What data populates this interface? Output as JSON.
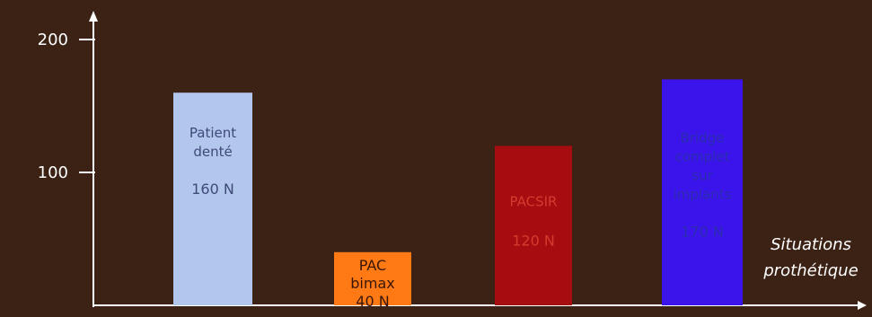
{
  "chart_data": {
    "type": "bar",
    "categories": [
      "Patient denté 160 N",
      "PAC bimax 40 N",
      "PACSIR 120 N",
      "Bridge complet sur implants 170 N"
    ],
    "values": [
      160,
      40,
      120,
      170
    ],
    "bar_labels": [
      [
        "Patient",
        "denté",
        "",
        "160 N"
      ],
      [
        "PAC",
        "bimax",
        "40 N"
      ],
      [
        "PACSIR",
        "",
        "120 N"
      ],
      [
        "Bridge",
        "complet",
        "sur",
        "implants",
        "",
        "170 N"
      ]
    ],
    "bar_colors": [
      "#b3c6ec",
      "#ff7a14",
      "#a50d10",
      "#3a14ea"
    ],
    "label_colors": [
      "#3e4a78",
      "#3a1608",
      "#d63a2e",
      "#2d2db0"
    ],
    "yticks": [
      100,
      200
    ],
    "ylim": [
      0,
      200
    ],
    "xlabel": [
      "Situations",
      "prothétique"
    ],
    "ylabel": "",
    "title": "",
    "axis_color": "#ffffff",
    "text_color": "#ffffff"
  }
}
